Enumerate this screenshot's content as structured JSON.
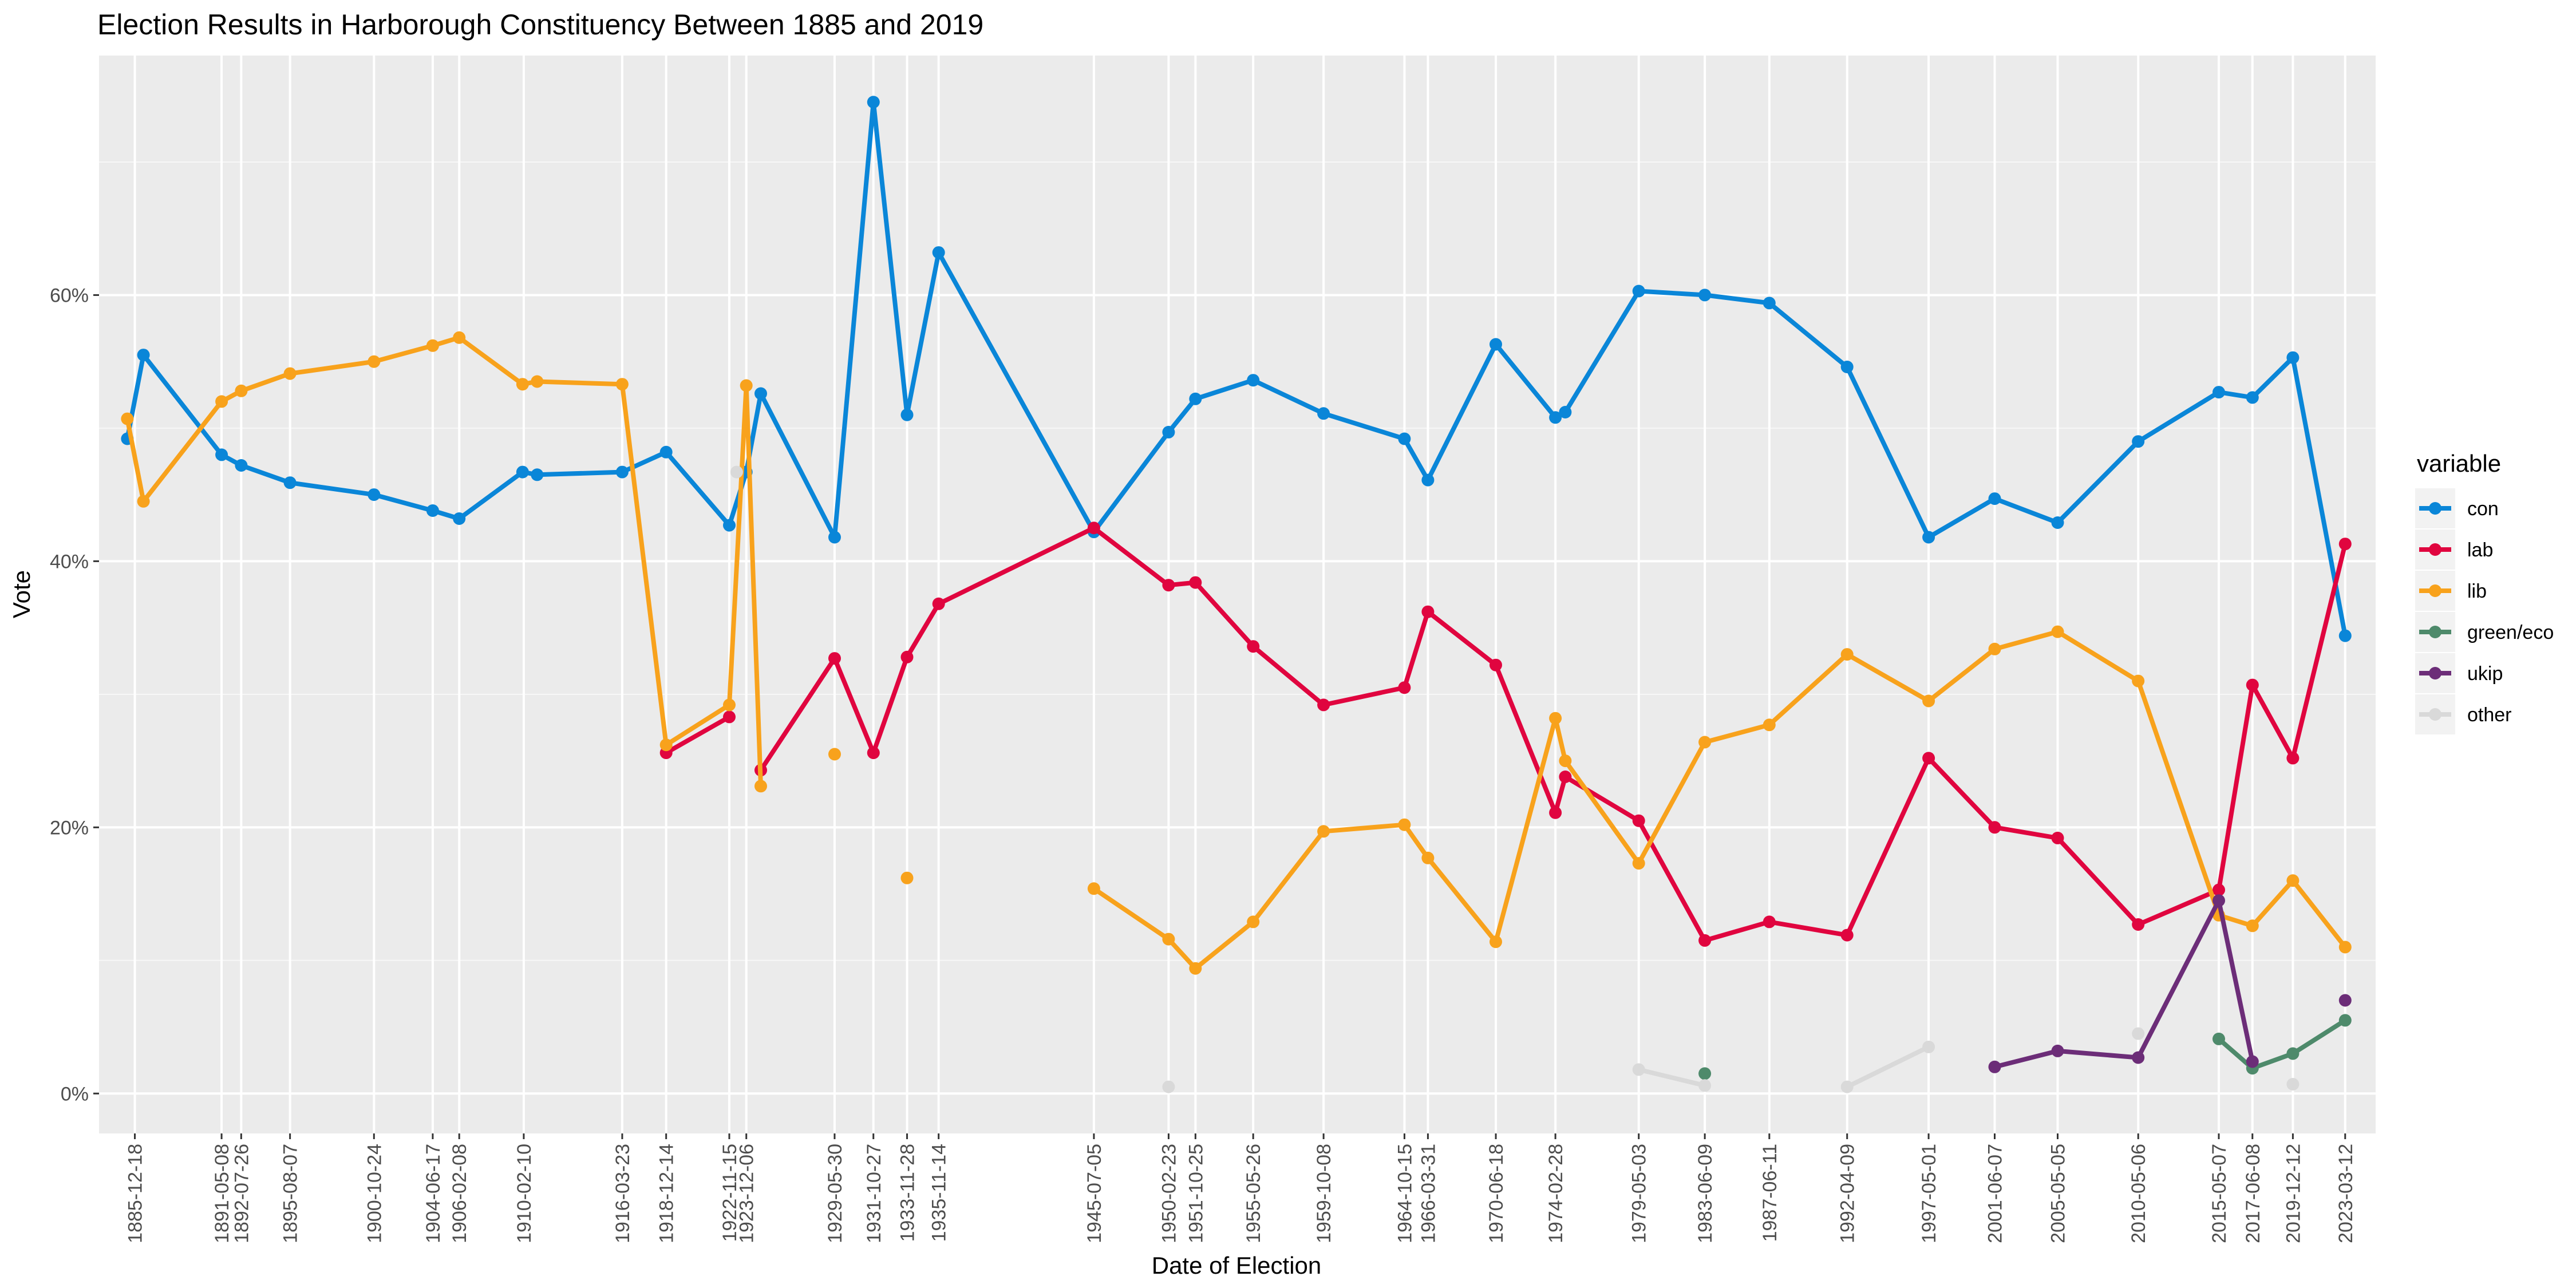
{
  "chart_data": {
    "type": "line",
    "title": "Election Results in Harborough Constituency Between 1885 and 2019",
    "xlabel": "Date of Election",
    "ylabel": "Vote",
    "ylim": [
      -0.03,
      0.78
    ],
    "y_ticks": [
      0,
      0.2,
      0.4,
      0.6
    ],
    "y_tick_labels": [
      "0%",
      "20%",
      "40%",
      "60%"
    ],
    "x_ticks": [
      "1885-12-18",
      "1891-05-08",
      "1892-07-26",
      "1895-08-07",
      "1900-10-24",
      "1904-06-17",
      "1906-02-08",
      "1910-02-10",
      "1916-03-23",
      "1918-12-14",
      "1922-11-15",
      "1923-12-06",
      "1929-05-30",
      "1931-10-27",
      "1933-11-28",
      "1935-11-14",
      "1945-07-05",
      "1950-02-23",
      "1951-10-25",
      "1955-05-26",
      "1959-10-08",
      "1964-10-15",
      "1966-03-31",
      "1970-06-18",
      "1974-02-28",
      "1979-05-03",
      "1983-06-09",
      "1987-06-11",
      "1992-04-09",
      "1997-05-01",
      "2001-06-07",
      "2005-05-05",
      "2010-05-06",
      "2015-05-07",
      "2017-06-08",
      "2019-12-12",
      "2023-03-12"
    ],
    "legend": {
      "title": "variable",
      "position": "right"
    },
    "grid": true,
    "series": [
      {
        "name": "con",
        "color": "#0a86d8",
        "segments": [
          [
            [
              "1885-07-01",
              0.492
            ],
            [
              "1886-07-01",
              0.555
            ],
            [
              "1891-05-08",
              0.48
            ],
            [
              "1892-07-26",
              0.472
            ],
            [
              "1895-08-07",
              0.459
            ],
            [
              "1900-10-24",
              0.45
            ],
            [
              "1904-06-17",
              0.438
            ],
            [
              "1906-02-08",
              0.432
            ],
            [
              "1910-01-15",
              0.467
            ],
            [
              "1910-12-10",
              0.465
            ],
            [
              "1916-03-23",
              0.467
            ],
            [
              "1918-12-14",
              0.482
            ],
            [
              "1922-11-15",
              0.427
            ],
            [
              "1923-12-06",
              0.467
            ],
            [
              "1924-10-29",
              0.526
            ],
            [
              "1929-05-30",
              0.418
            ],
            [
              "1931-10-27",
              0.745
            ],
            [
              "1933-11-28",
              0.51
            ],
            [
              "1935-11-14",
              0.632
            ],
            [
              "1945-07-05",
              0.422
            ],
            [
              "1950-02-23",
              0.497
            ],
            [
              "1951-10-25",
              0.522
            ],
            [
              "1955-05-26",
              0.536
            ],
            [
              "1959-10-08",
              0.511
            ],
            [
              "1964-10-15",
              0.492
            ],
            [
              "1966-03-31",
              0.461
            ],
            [
              "1970-06-18",
              0.563
            ],
            [
              "1974-02-28",
              0.508
            ],
            [
              "1974-10-10",
              0.512
            ],
            [
              "1979-05-03",
              0.603
            ],
            [
              "1983-06-09",
              0.6
            ],
            [
              "1987-06-11",
              0.594
            ],
            [
              "1992-04-09",
              0.546
            ],
            [
              "1997-05-01",
              0.418
            ],
            [
              "2001-06-07",
              0.447
            ],
            [
              "2005-05-05",
              0.429
            ],
            [
              "2010-05-06",
              0.49
            ],
            [
              "2015-05-07",
              0.527
            ],
            [
              "2017-06-08",
              0.523
            ],
            [
              "2019-12-12",
              0.553
            ],
            [
              "2023-03-12",
              0.344
            ]
          ]
        ]
      },
      {
        "name": "lab",
        "color": "#e0053f",
        "segments": [
          [
            [
              "1918-12-14",
              0.256
            ],
            [
              "1922-11-15",
              0.283
            ]
          ],
          [
            [
              "1924-10-29",
              0.243
            ],
            [
              "1929-05-30",
              0.327
            ],
            [
              "1931-10-27",
              0.256
            ],
            [
              "1933-11-28",
              0.328
            ],
            [
              "1935-11-14",
              0.368
            ],
            [
              "1945-07-05",
              0.425
            ],
            [
              "1950-02-23",
              0.382
            ],
            [
              "1951-10-25",
              0.384
            ],
            [
              "1955-05-26",
              0.336
            ],
            [
              "1959-10-08",
              0.292
            ],
            [
              "1964-10-15",
              0.305
            ],
            [
              "1966-03-31",
              0.362
            ],
            [
              "1970-06-18",
              0.322
            ],
            [
              "1974-02-28",
              0.211
            ],
            [
              "1974-10-10",
              0.238
            ],
            [
              "1979-05-03",
              0.205
            ],
            [
              "1983-06-09",
              0.115
            ],
            [
              "1987-06-11",
              0.129
            ],
            [
              "1992-04-09",
              0.119
            ],
            [
              "1997-05-01",
              0.252
            ],
            [
              "2001-06-07",
              0.2
            ],
            [
              "2005-05-05",
              0.192
            ],
            [
              "2010-05-06",
              0.127
            ],
            [
              "2015-05-07",
              0.153
            ],
            [
              "2017-06-08",
              0.307
            ],
            [
              "2019-12-12",
              0.252
            ],
            [
              "2023-03-12",
              0.413
            ]
          ]
        ]
      },
      {
        "name": "lib",
        "color": "#f8a21c",
        "segments": [
          [
            [
              "1885-07-01",
              0.507
            ],
            [
              "1886-07-01",
              0.445
            ],
            [
              "1891-05-08",
              0.52
            ],
            [
              "1892-07-26",
              0.528
            ],
            [
              "1895-08-07",
              0.541
            ],
            [
              "1900-10-24",
              0.55
            ],
            [
              "1904-06-17",
              0.562
            ],
            [
              "1906-02-08",
              0.568
            ],
            [
              "1910-01-15",
              0.533
            ],
            [
              "1910-12-10",
              0.535
            ],
            [
              "1916-03-23",
              0.533
            ],
            [
              "1918-12-14",
              0.262
            ],
            [
              "1922-11-15",
              0.292
            ],
            [
              "1923-12-06",
              0.532
            ],
            [
              "1924-10-29",
              0.231
            ]
          ],
          [
            [
              "1929-05-30",
              0.255
            ]
          ],
          [
            [
              "1933-11-28",
              0.162
            ]
          ],
          [
            [
              "1945-07-05",
              0.154
            ],
            [
              "1950-02-23",
              0.116
            ],
            [
              "1951-10-25",
              0.094
            ],
            [
              "1955-05-26",
              0.129
            ],
            [
              "1959-10-08",
              0.197
            ],
            [
              "1964-10-15",
              0.202
            ],
            [
              "1966-03-31",
              0.177
            ],
            [
              "1970-06-18",
              0.114
            ],
            [
              "1974-02-28",
              0.282
            ],
            [
              "1974-10-10",
              0.25
            ],
            [
              "1979-05-03",
              0.173
            ],
            [
              "1983-06-09",
              0.264
            ],
            [
              "1987-06-11",
              0.277
            ],
            [
              "1992-04-09",
              0.33
            ],
            [
              "1997-05-01",
              0.295
            ],
            [
              "2001-06-07",
              0.334
            ],
            [
              "2005-05-05",
              0.347
            ],
            [
              "2010-05-06",
              0.31
            ],
            [
              "2015-05-07",
              0.134
            ],
            [
              "2017-06-08",
              0.126
            ],
            [
              "2019-12-12",
              0.16
            ],
            [
              "2023-03-12",
              0.11
            ]
          ]
        ]
      },
      {
        "name": "green/eco",
        "color": "#4e8a6b",
        "segments": [
          [
            [
              "1983-06-09",
              0.015
            ]
          ],
          [
            [
              "2015-05-07",
              0.041
            ],
            [
              "2017-06-08",
              0.019
            ],
            [
              "2019-12-12",
              0.03
            ],
            [
              "2023-03-12",
              0.055
            ]
          ]
        ]
      },
      {
        "name": "ukip",
        "color": "#6c2d78",
        "segments": [
          [
            [
              "2001-06-07",
              0.02
            ],
            [
              "2005-05-05",
              0.032
            ],
            [
              "2010-05-06",
              0.027
            ],
            [
              "2015-05-07",
              0.145
            ],
            [
              "2017-06-08",
              0.024
            ]
          ],
          [
            [
              "2023-03-12",
              0.07
            ]
          ]
        ]
      },
      {
        "name": "other",
        "color": "#d9d9d9",
        "segments": [
          [
            [
              "1923-05-01",
              0.467
            ]
          ],
          [
            [
              "1950-02-23",
              0.005
            ]
          ],
          [
            [
              "1979-05-03",
              0.018
            ],
            [
              "1983-06-09",
              0.006
            ]
          ],
          [
            [
              "1992-04-09",
              0.005
            ],
            [
              "1997-05-01",
              0.035
            ]
          ],
          [
            [
              "2010-05-06",
              0.045
            ]
          ],
          [
            [
              "2019-12-12",
              0.007
            ]
          ]
        ]
      }
    ]
  }
}
